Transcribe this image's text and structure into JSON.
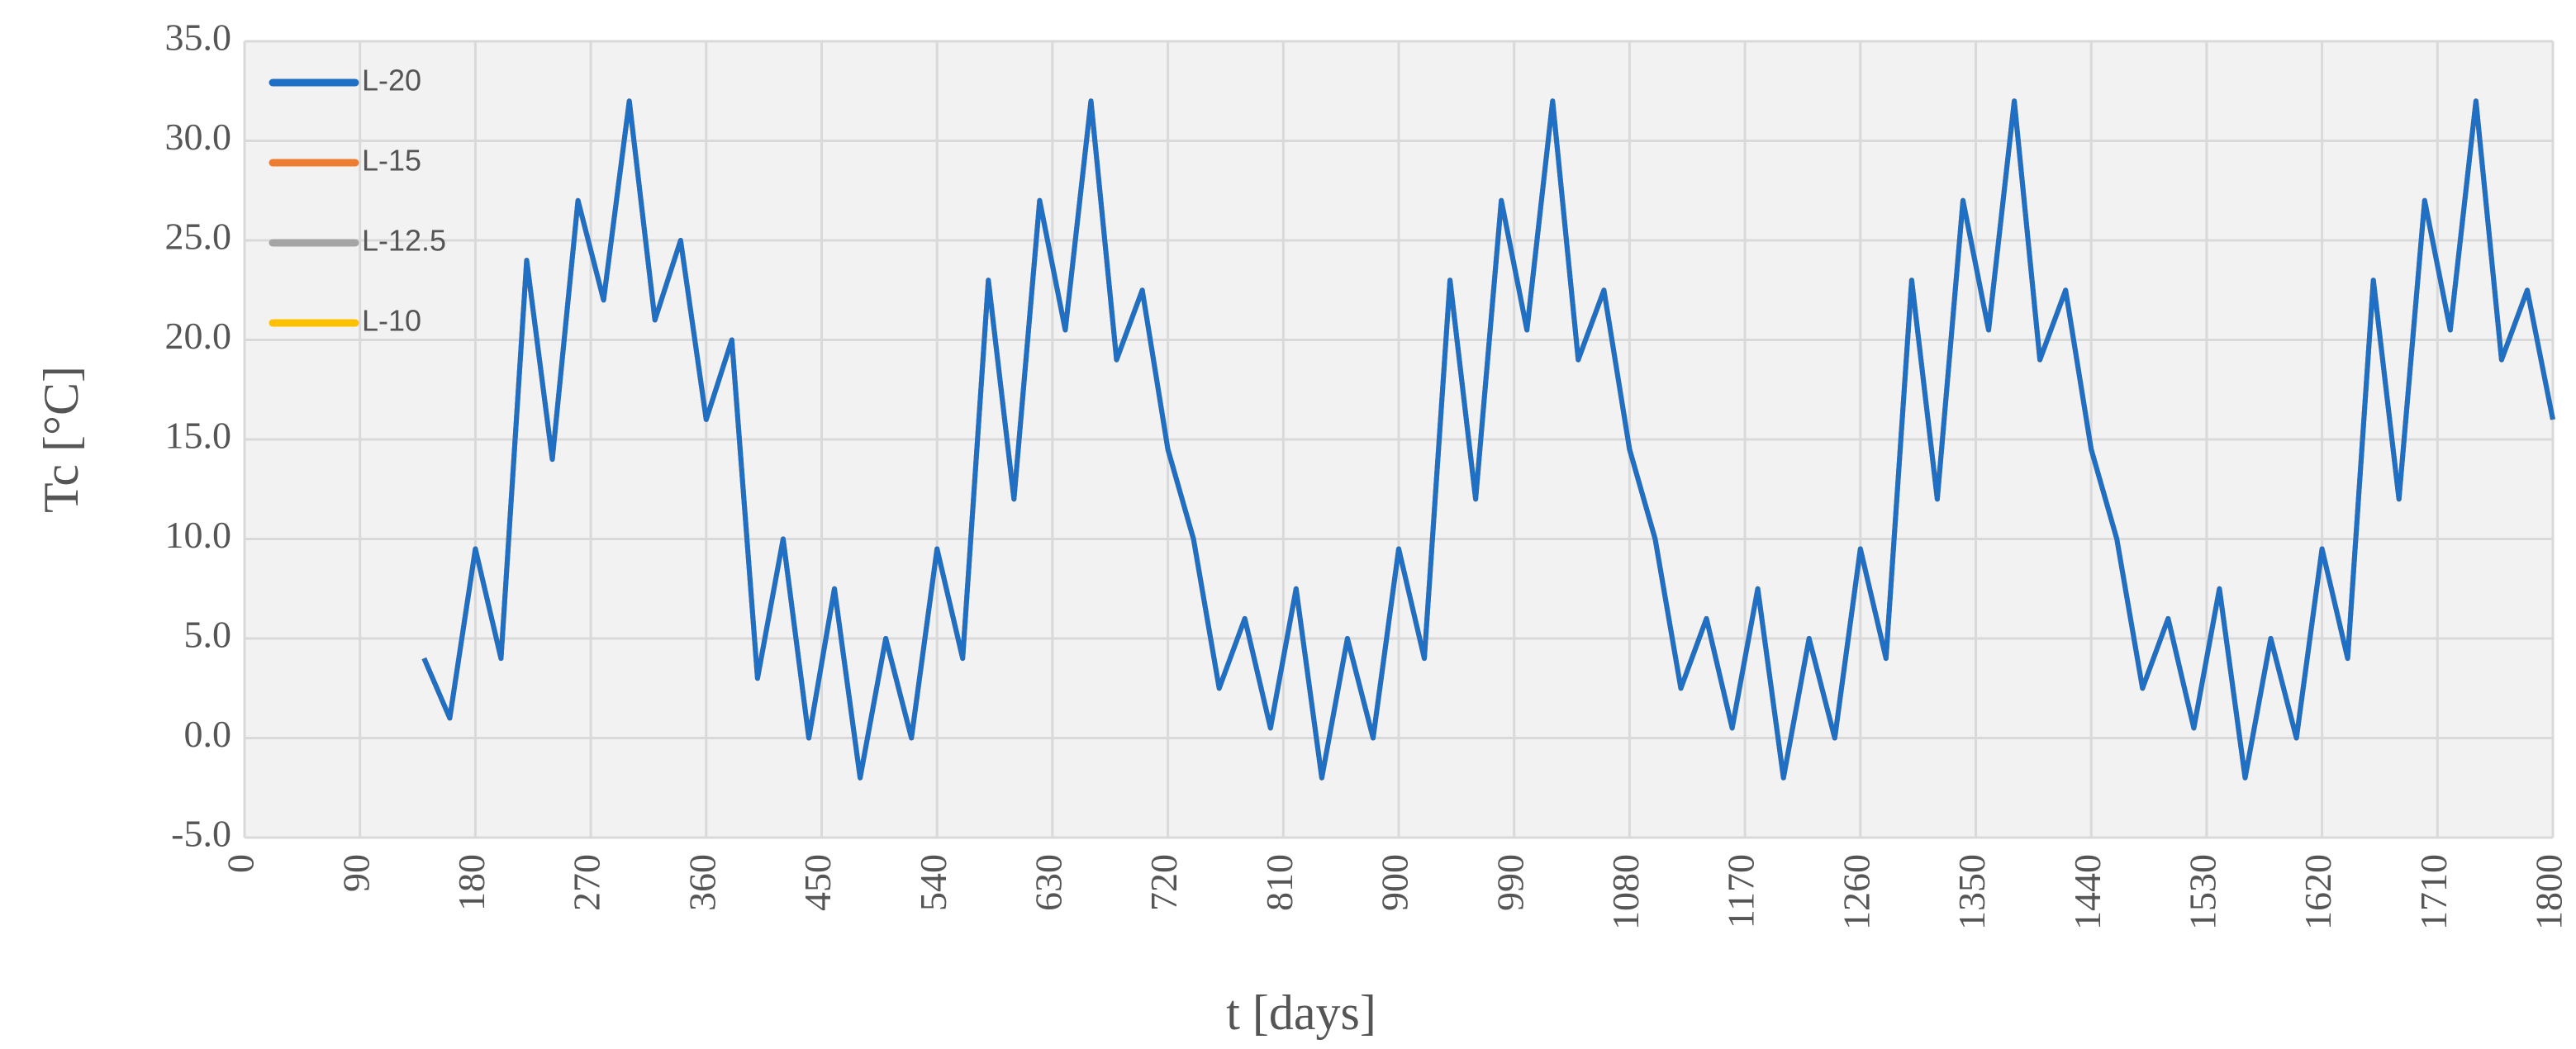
{
  "chart_data": {
    "type": "line",
    "x_label": "t [days]",
    "y_label": "Tc [°C]",
    "x": [
      140,
      160,
      180,
      200,
      220,
      240,
      260,
      280,
      300,
      320,
      340,
      360,
      380,
      400,
      420,
      440,
      460,
      480,
      500,
      520,
      540,
      560,
      580,
      600,
      620,
      640,
      660,
      680,
      700,
      720,
      740,
      760,
      780,
      800,
      820,
      840,
      860,
      880,
      900,
      920,
      940,
      960,
      980,
      1000,
      1020,
      1040,
      1060,
      1080,
      1100,
      1120,
      1140,
      1160,
      1180,
      1200,
      1220,
      1240,
      1260,
      1280,
      1300,
      1320,
      1340,
      1360,
      1380,
      1400,
      1420,
      1440,
      1460,
      1480,
      1500,
      1520,
      1540,
      1560,
      1580,
      1600,
      1620,
      1640,
      1660,
      1680,
      1700,
      1720,
      1740,
      1760,
      1780,
      1800
    ],
    "series": [
      {
        "name": "L-20",
        "color": "#1f6fc5",
        "values": [
          4.0,
          1.0,
          9.5,
          4.0,
          24.0,
          14.0,
          27.0,
          22.0,
          32.0,
          21.0,
          25.0,
          16.0,
          20.0,
          3.0,
          10.0,
          0.0,
          7.5,
          -2.0,
          5.0,
          0.0,
          9.5,
          4.0,
          23.0,
          12.0,
          27.0,
          20.5,
          32.0,
          19.0,
          22.5,
          14.5,
          10.0,
          2.5,
          6.0,
          0.5,
          7.5,
          -2.0,
          5.0,
          0.0,
          9.5,
          4.0,
          23.0,
          12.0,
          27.0,
          20.5,
          32.0,
          19.0,
          22.5,
          14.5,
          10.0,
          2.5,
          6.0,
          0.5,
          7.5,
          -2.0,
          5.0,
          0.0,
          9.5,
          4.0,
          23.0,
          12.0,
          27.0,
          20.5,
          32.0,
          19.0,
          22.5,
          14.5,
          10.0,
          2.5,
          6.0,
          0.5,
          7.5,
          -2.0,
          5.0,
          0.0,
          9.5,
          4.0,
          23.0,
          12.0,
          27.0,
          20.5,
          32.0,
          19.0,
          22.5,
          16.0
        ]
      },
      {
        "name": "L-15",
        "color": "#ed7d31",
        "values": [
          4.0,
          1.0,
          9.5,
          4.0,
          24.0,
          14.0,
          27.0,
          22.0,
          32.0,
          21.0,
          25.0,
          16.0,
          20.0,
          3.0,
          10.0,
          0.0,
          7.5,
          -2.0,
          5.0,
          0.0,
          9.5,
          4.0,
          23.0,
          12.0,
          27.0,
          20.5,
          32.0,
          19.0,
          22.5,
          14.5,
          10.0,
          2.5,
          6.0,
          0.5,
          7.5,
          -2.0,
          5.0,
          0.0,
          9.5,
          4.0,
          23.0,
          12.0,
          27.0,
          20.5,
          32.0,
          19.0,
          22.5,
          14.5,
          10.0,
          2.5,
          6.0,
          0.5,
          7.5,
          -2.0,
          5.0,
          0.0,
          9.5,
          4.0,
          23.0,
          12.0,
          27.0,
          20.5,
          32.0,
          19.0,
          22.5,
          14.5,
          10.0,
          2.5,
          6.0,
          0.5,
          7.5,
          -2.0,
          5.0,
          0.0,
          9.5,
          4.0,
          23.0,
          12.0,
          27.0,
          20.5,
          32.0,
          19.0,
          22.5,
          16.0
        ]
      },
      {
        "name": "L-12.5",
        "color": "#a5a5a5",
        "values": [
          4.0,
          1.0,
          9.5,
          4.0,
          24.0,
          14.0,
          27.0,
          22.0,
          32.0,
          21.0,
          25.0,
          16.0,
          20.0,
          3.0,
          10.0,
          0.0,
          7.5,
          -2.0,
          5.0,
          0.0,
          9.5,
          4.0,
          23.0,
          12.0,
          27.0,
          20.5,
          32.0,
          19.0,
          22.5,
          14.5,
          10.0,
          2.5,
          6.0,
          0.5,
          7.5,
          -2.0,
          5.0,
          0.0,
          9.5,
          4.0,
          23.0,
          12.0,
          27.0,
          20.5,
          32.0,
          19.0,
          22.5,
          14.5,
          10.0,
          2.5,
          6.0,
          0.5,
          7.5,
          -2.0,
          5.0,
          0.0,
          9.5,
          4.0,
          23.0,
          12.0,
          27.0,
          20.5,
          32.0,
          19.0,
          22.5,
          14.5,
          10.0,
          2.5,
          6.0,
          0.5,
          7.5,
          -2.0,
          5.0,
          0.0,
          9.5,
          4.0,
          23.0,
          12.0,
          27.0,
          20.5,
          32.0,
          19.0,
          22.5,
          16.0
        ]
      },
      {
        "name": "L-10",
        "color": "#ffc000",
        "values": [
          4.0,
          1.0,
          9.5,
          4.0,
          24.0,
          14.0,
          27.0,
          22.0,
          32.0,
          21.0,
          25.0,
          16.0,
          20.0,
          3.0,
          10.0,
          0.0,
          7.5,
          -2.0,
          5.0,
          0.0,
          9.5,
          4.0,
          23.0,
          12.0,
          27.0,
          20.5,
          32.0,
          19.0,
          22.5,
          14.5,
          10.0,
          2.5,
          6.0,
          0.5,
          7.5,
          -2.0,
          5.0,
          0.0,
          9.5,
          4.0,
          23.0,
          12.0,
          27.0,
          20.5,
          32.0,
          19.0,
          22.5,
          14.5,
          10.0,
          2.5,
          6.0,
          0.5,
          7.5,
          -2.0,
          5.0,
          0.0,
          9.5,
          4.0,
          23.0,
          12.0,
          27.0,
          20.5,
          32.0,
          19.0,
          22.5,
          14.5,
          10.0,
          2.5,
          6.0,
          0.5,
          7.5,
          -2.0,
          5.0,
          0.0,
          9.5,
          4.0,
          23.0,
          12.0,
          27.0,
          20.5,
          32.0,
          19.0,
          22.5,
          16.0
        ]
      }
    ],
    "xlim": [
      0,
      1800
    ],
    "xticks": [
      0,
      90,
      180,
      270,
      360,
      450,
      540,
      630,
      720,
      810,
      900,
      990,
      1080,
      1170,
      1260,
      1350,
      1440,
      1530,
      1620,
      1710,
      1800
    ],
    "ylim": [
      -5,
      35
    ],
    "yticks": [
      {
        "value": -5,
        "label": "-5.0"
      },
      {
        "value": 0,
        "label": "0.0"
      },
      {
        "value": 5,
        "label": "5.0"
      },
      {
        "value": 10,
        "label": "10.0"
      },
      {
        "value": 15,
        "label": "15.0"
      },
      {
        "value": 20,
        "label": "20.0"
      },
      {
        "value": 25,
        "label": "25.0"
      },
      {
        "value": 30,
        "label": "30.0"
      },
      {
        "value": 35,
        "label": "35.0"
      }
    ],
    "grid": true,
    "legend": "top-left"
  }
}
